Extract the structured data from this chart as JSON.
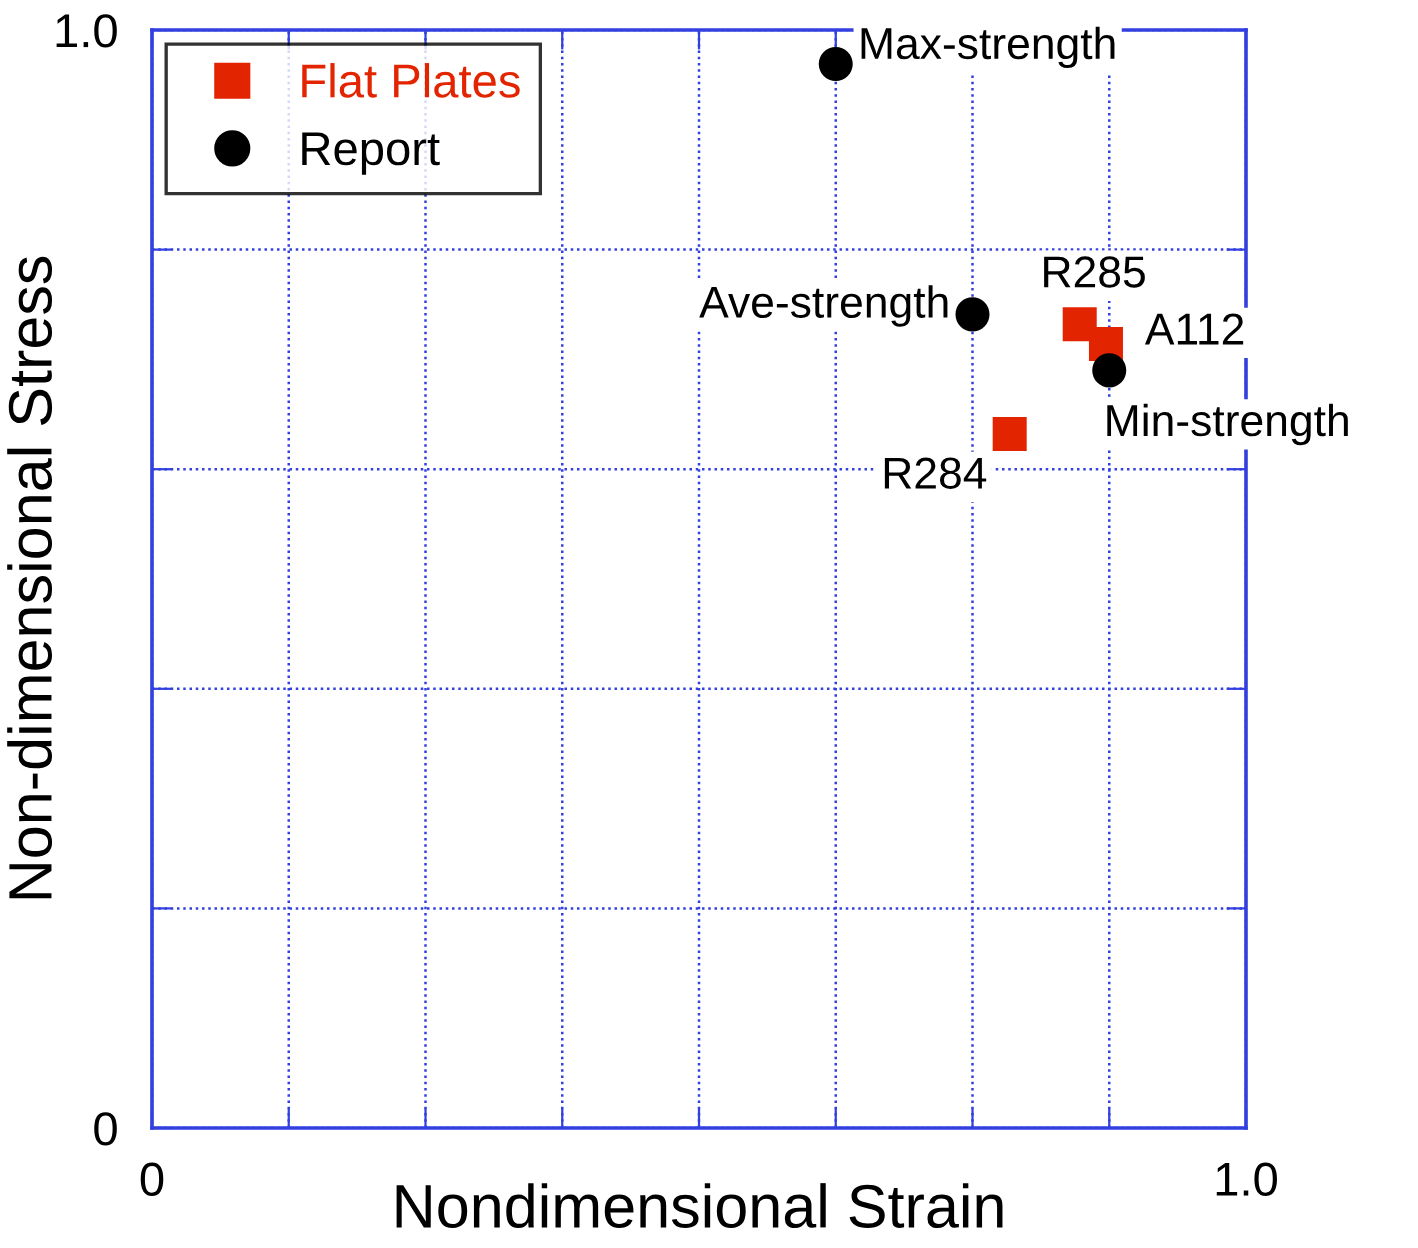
{
  "chart_data": {
    "type": "scatter",
    "xlabel": "Nondimensional Strain",
    "ylabel": "Non-dimensional Stress",
    "xlim": [
      0,
      1.0
    ],
    "ylim": [
      0,
      1.0
    ],
    "xticks": [
      0,
      {
        "value": 0.125,
        "label": null
      },
      {
        "value": 0.25,
        "label": null
      },
      {
        "value": 0.375,
        "label": null
      },
      {
        "value": 0.5,
        "label": null
      },
      {
        "value": 0.625,
        "label": null
      },
      {
        "value": 0.75,
        "label": null
      },
      {
        "value": 0.875,
        "label": null
      },
      {
        "value": 1.0,
        "label": "1.0"
      }
    ],
    "yticks": [
      0,
      {
        "value": 0.2,
        "label": null
      },
      {
        "value": 0.4,
        "label": null
      },
      {
        "value": 0.6,
        "label": null
      },
      {
        "value": 0.8,
        "label": null
      },
      {
        "value": 1.0,
        "label": "1.0"
      }
    ],
    "grid": true,
    "legend": "top left",
    "series": [
      {
        "name": "Flat Plates",
        "color": "#e32400",
        "marker": "square",
        "x": [
          0.848,
          0.872,
          0.784
        ],
        "values": [
          0.732,
          0.714,
          0.632
        ]
      },
      {
        "name": "Report",
        "color": "#000000",
        "marker": "circle",
        "x": [
          0.625,
          0.75,
          0.875
        ],
        "values": [
          0.969,
          0.741,
          0.69
        ]
      }
    ],
    "annotations": [
      {
        "text": "Max-strength",
        "x": 0.625,
        "y": 0.969
      },
      {
        "text": "Ave-strength",
        "x": 0.75,
        "y": 0.741
      },
      {
        "text": "Min-strength",
        "x": 0.875,
        "y": 0.69
      },
      {
        "text": "R285",
        "x": 0.848,
        "y": 0.732
      },
      {
        "text": "A112",
        "x": 0.872,
        "y": 0.714
      },
      {
        "text": "R284",
        "x": 0.784,
        "y": 0.632
      }
    ]
  }
}
